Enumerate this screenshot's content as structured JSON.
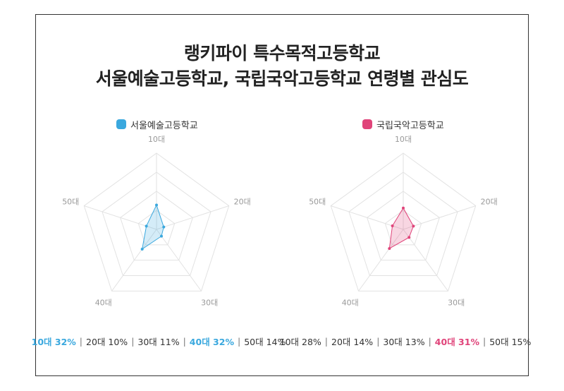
{
  "title_line1": "랭키파이 특수목적고등학교",
  "title_line2": "서울예술고등학교, 국립국악고등학교 연령별 관심도",
  "axis_max": 100,
  "rings": 4,
  "chart_data": [
    {
      "type": "radar",
      "name": "서울예술고등학교",
      "color": "#3aa8de",
      "fill": "rgba(58,168,222,0.22)",
      "categories": [
        "10대",
        "20대",
        "30대",
        "40대",
        "50대"
      ],
      "values": [
        32,
        10,
        11,
        32,
        14
      ],
      "labels": [
        "10대 32%",
        "20대 10%",
        "30대 11%",
        "40대 32%",
        "50대 14%"
      ],
      "highlight": [
        true,
        false,
        false,
        true,
        false
      ]
    },
    {
      "type": "radar",
      "name": "국립국악고등학교",
      "color": "#e0447a",
      "fill": "rgba(224,68,122,0.22)",
      "categories": [
        "10대",
        "20대",
        "30대",
        "40대",
        "50대"
      ],
      "values": [
        28,
        14,
        13,
        31,
        15
      ],
      "labels": [
        "10대 28%",
        "20대 14%",
        "30대 13%",
        "40대 31%",
        "50대 15%"
      ],
      "highlight": [
        false,
        false,
        false,
        true,
        false
      ]
    }
  ]
}
